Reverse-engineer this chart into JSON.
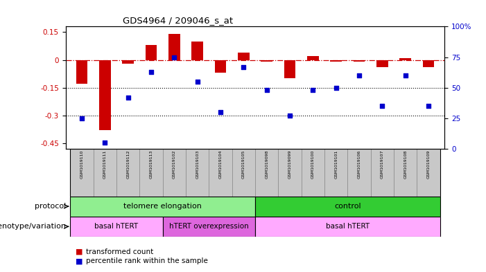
{
  "title": "GDS4964 / 209046_s_at",
  "samples": [
    "GSM1019110",
    "GSM1019111",
    "GSM1019112",
    "GSM1019113",
    "GSM1019102",
    "GSM1019103",
    "GSM1019104",
    "GSM1019105",
    "GSM1019098",
    "GSM1019099",
    "GSM1019100",
    "GSM1019101",
    "GSM1019106",
    "GSM1019107",
    "GSM1019108",
    "GSM1019109"
  ],
  "bar_values": [
    -0.13,
    -0.38,
    -0.02,
    0.08,
    0.14,
    0.1,
    -0.07,
    0.04,
    -0.01,
    -0.1,
    0.02,
    -0.01,
    -0.01,
    -0.04,
    0.01,
    -0.04
  ],
  "dot_values": [
    25,
    5,
    42,
    63,
    75,
    55,
    30,
    67,
    48,
    27,
    48,
    50,
    60,
    35,
    60,
    35
  ],
  "ylim_left": [
    -0.48,
    0.18
  ],
  "ylim_right": [
    0,
    100
  ],
  "yticks_left": [
    0.15,
    0,
    -0.15,
    -0.3,
    -0.45
  ],
  "yticks_right": [
    100,
    75,
    50,
    25,
    0
  ],
  "bar_color": "#cc0000",
  "dot_color": "#0000cc",
  "hline_color": "#cc0000",
  "hline_style": "-.",
  "grid_color": "black",
  "grid_style": ":",
  "grid_lw": 0.8,
  "protocol_labels": [
    {
      "text": "telomere elongation",
      "start": 0,
      "end": 7,
      "color": "#90ee90"
    },
    {
      "text": "control",
      "start": 8,
      "end": 15,
      "color": "#33cc33"
    }
  ],
  "genotype_labels": [
    {
      "text": "basal hTERT",
      "start": 0,
      "end": 3,
      "color": "#ffaaff"
    },
    {
      "text": "hTERT overexpression",
      "start": 4,
      "end": 7,
      "color": "#dd66dd"
    },
    {
      "text": "basal hTERT",
      "start": 8,
      "end": 15,
      "color": "#ffaaff"
    }
  ],
  "protocol_row_label": "protocol",
  "genotype_row_label": "genotype/variation",
  "legend_bar_label": "transformed count",
  "legend_dot_label": "percentile rank within the sample",
  "bar_width": 0.5,
  "tick_bg_color": "#c8c8c8"
}
